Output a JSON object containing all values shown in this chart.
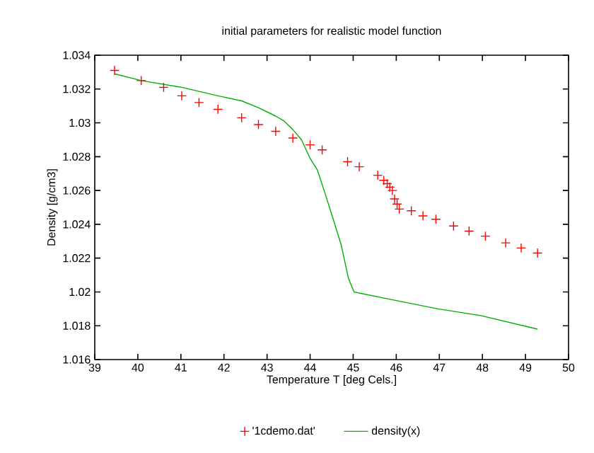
{
  "chart_data": {
    "type": "line",
    "title": "initial parameters for realistic model function",
    "xlabel": "Temperature T   [deg Cels.]",
    "ylabel": "Density [g/cm3]",
    "xlim": [
      39,
      50
    ],
    "xticks": [
      39,
      40,
      41,
      42,
      43,
      44,
      45,
      46,
      47,
      48,
      49,
      50
    ],
    "ylim": [
      1.016,
      1.034
    ],
    "yticks": [
      1.016,
      1.018,
      1.02,
      1.022,
      1.024,
      1.026,
      1.028,
      1.03,
      1.032,
      1.034
    ],
    "legend": "bottom",
    "grid": false,
    "series": [
      {
        "name": "'1cdemo.dat'",
        "type": "scatter",
        "marker": "cross",
        "color": "#ff0000",
        "x": [
          39.46,
          40.08,
          40.6,
          41.02,
          41.42,
          41.86,
          42.41,
          42.8,
          43.2,
          43.6,
          44.0,
          44.28,
          44.87,
          45.14,
          45.57,
          45.71,
          45.79,
          45.85,
          45.91,
          45.96,
          46.02,
          46.07,
          46.35,
          46.62,
          46.92,
          47.33,
          47.69,
          48.07,
          48.54,
          48.9,
          49.28
        ],
        "values": [
          1.0331,
          1.0325,
          1.0321,
          1.0316,
          1.0312,
          1.0308,
          1.0303,
          1.0299,
          1.0295,
          1.0291,
          1.0287,
          1.0284,
          1.0277,
          1.0274,
          1.0269,
          1.0266,
          1.0264,
          1.0262,
          1.026,
          1.0255,
          1.0252,
          1.0249,
          1.0248,
          1.0245,
          1.0243,
          1.0239,
          1.0236,
          1.0233,
          1.0229,
          1.0226,
          1.0223
        ]
      },
      {
        "name": "density(x)",
        "marker": "none",
        "line_style": "solid",
        "color": "#00b000",
        "x": [
          39.46,
          40.08,
          41.02,
          41.86,
          42.41,
          42.8,
          43.2,
          43.4,
          43.6,
          43.8,
          44.0,
          44.17,
          44.35,
          44.45,
          44.72,
          44.89,
          45.02,
          45.98,
          46.97,
          47.96,
          49.28
        ],
        "values": [
          1.0329,
          1.0325,
          1.0321,
          1.0316,
          1.0313,
          1.0309,
          1.0304,
          1.0301,
          1.0296,
          1.029,
          1.0279,
          1.0272,
          1.0258,
          1.025,
          1.0228,
          1.0208,
          1.02,
          1.0195,
          1.019,
          1.0186,
          1.0178
        ]
      }
    ]
  }
}
